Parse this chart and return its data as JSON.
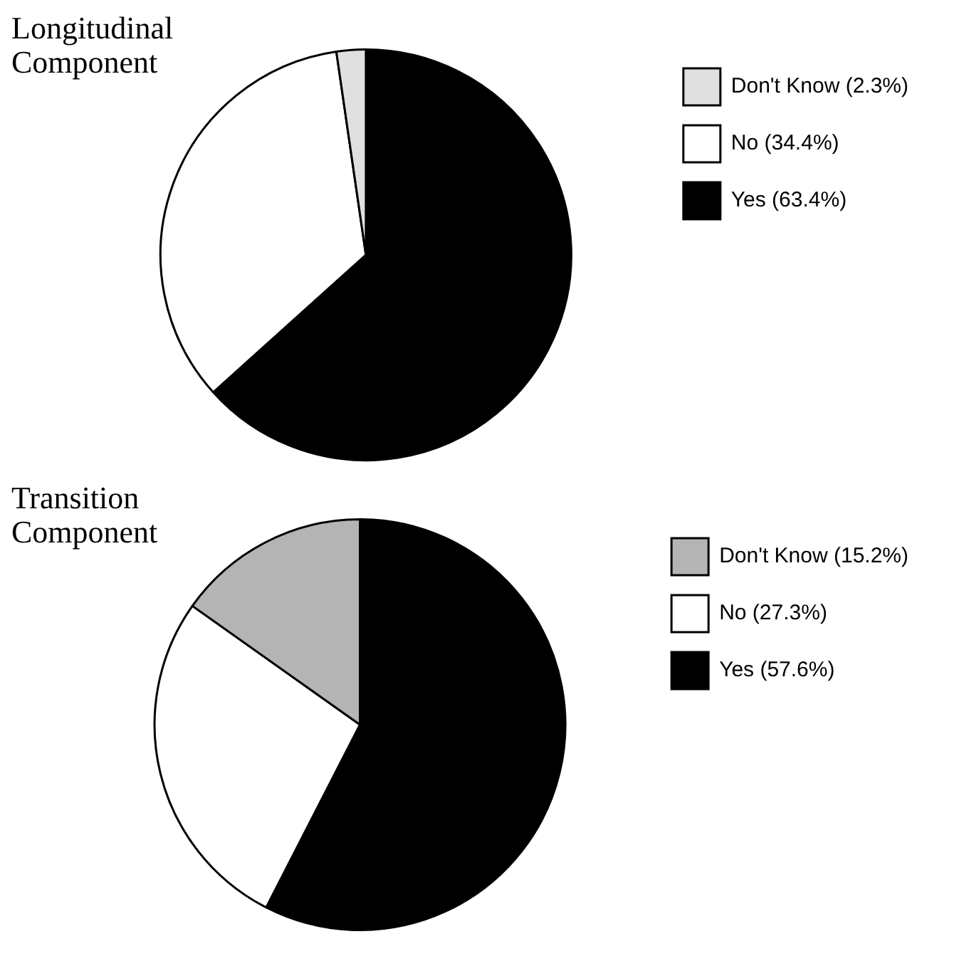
{
  "chart_data": [
    {
      "type": "pie",
      "title": "Longitudinal Component",
      "categories": [
        "Don't Know (2.3%)",
        "No (34.4%)",
        "Yes (63.4%)"
      ],
      "values": [
        2.3,
        34.4,
        63.4
      ],
      "colors": [
        "#e0e0e0",
        "#ffffff",
        "#000000"
      ],
      "legend": "top right"
    },
    {
      "type": "pie",
      "title": "Transition Component",
      "categories": [
        "Don't Know (15.2%)",
        "No (27.3%)",
        "Yes (57.6%)"
      ],
      "values": [
        15.2,
        27.3,
        57.6
      ],
      "colors": [
        "#b4b4b4",
        "#ffffff",
        "#000000"
      ],
      "legend": "top right"
    }
  ]
}
